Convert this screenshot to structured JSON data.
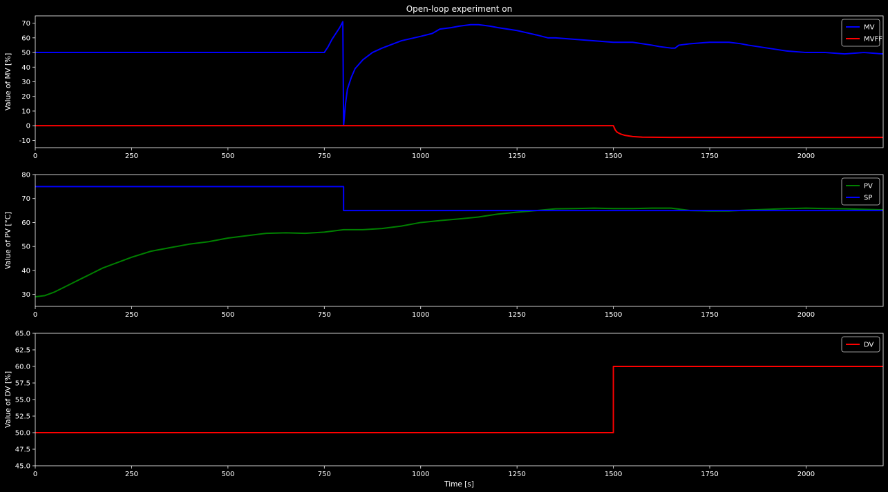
{
  "title": "Open-loop experiment on",
  "colors": {
    "background": "#000000",
    "axes": "#ffffff",
    "text": "#ffffff",
    "MV": "#0000ff",
    "MVFF": "#ff0000",
    "PV": "#008000",
    "SP": "#0000ff",
    "DV": "#ff0000"
  },
  "chart_data": [
    {
      "type": "line",
      "title": "Open-loop experiment on",
      "xlabel": "",
      "ylabel": "Value of MV [%]",
      "xlim": [
        0,
        2200
      ],
      "ylim": [
        -15,
        75
      ],
      "xticks": [
        0,
        250,
        500,
        750,
        1000,
        1250,
        1500,
        1750,
        2000
      ],
      "yticks": [
        -10,
        0,
        10,
        20,
        30,
        40,
        50,
        60,
        70
      ],
      "legend": "top-right",
      "grid": false,
      "series": [
        {
          "name": "MV",
          "color": "#0000ff",
          "x": [
            0,
            750,
            760,
            770,
            780,
            790,
            798,
            799,
            800,
            805,
            810,
            820,
            830,
            850,
            875,
            900,
            950,
            1000,
            1030,
            1050,
            1080,
            1100,
            1130,
            1150,
            1180,
            1200,
            1250,
            1300,
            1330,
            1350,
            1400,
            1450,
            1500,
            1550,
            1600,
            1620,
            1650,
            1660,
            1670,
            1700,
            1750,
            1800,
            1830,
            1850,
            1900,
            1950,
            2000,
            2050,
            2100,
            2150,
            2200
          ],
          "y": [
            50,
            50,
            54,
            59,
            63,
            67,
            71,
            40,
            0,
            15,
            25,
            33,
            39,
            45,
            50,
            53,
            58,
            61,
            63,
            66,
            67,
            68,
            69,
            69,
            68,
            67,
            65,
            62,
            60,
            60,
            59,
            58,
            57,
            57,
            55,
            54,
            53,
            53,
            55,
            56,
            57,
            57,
            56,
            55,
            53,
            51,
            50,
            50,
            49,
            50,
            49
          ]
        },
        {
          "name": "MVFF",
          "color": "#ff0000",
          "x": [
            0,
            1500,
            1505,
            1510,
            1520,
            1530,
            1550,
            1575,
            1600,
            1650,
            1700,
            2200
          ],
          "y": [
            0,
            0,
            -3,
            -4.5,
            -5.8,
            -6.6,
            -7.4,
            -7.8,
            -7.9,
            -8,
            -8,
            -8
          ]
        }
      ]
    },
    {
      "type": "line",
      "xlabel": "",
      "ylabel": "Value of PV [°C]",
      "xlim": [
        0,
        2200
      ],
      "ylim": [
        25,
        80
      ],
      "xticks": [
        0,
        250,
        500,
        750,
        1000,
        1250,
        1500,
        1750,
        2000
      ],
      "yticks": [
        30,
        40,
        50,
        60,
        70,
        80
      ],
      "legend": "top-right",
      "grid": false,
      "series": [
        {
          "name": "PV",
          "color": "#008000",
          "x": [
            0,
            25,
            50,
            75,
            100,
            125,
            150,
            175,
            200,
            250,
            300,
            350,
            400,
            450,
            500,
            550,
            600,
            650,
            700,
            750,
            800,
            850,
            900,
            950,
            1000,
            1050,
            1100,
            1150,
            1200,
            1250,
            1300,
            1350,
            1400,
            1450,
            1500,
            1550,
            1600,
            1650,
            1700,
            1750,
            1800,
            1850,
            1900,
            1950,
            2000,
            2050,
            2100,
            2150,
            2200
          ],
          "y": [
            29,
            29.5,
            31,
            33,
            35,
            37,
            39,
            41,
            42.5,
            45.5,
            48,
            49.5,
            51,
            52,
            53.5,
            54.5,
            55.5,
            55.7,
            55.5,
            56,
            57,
            57,
            57.5,
            58.5,
            60,
            60.8,
            61.5,
            62.3,
            63.5,
            64.3,
            65,
            65.7,
            65.8,
            66,
            65.8,
            65.8,
            66,
            66,
            65,
            64.8,
            64.8,
            65.2,
            65.5,
            65.8,
            66,
            65.8,
            65.7,
            65.5,
            65.3
          ]
        },
        {
          "name": "SP",
          "color": "#0000ff",
          "x": [
            0,
            800,
            800,
            2200
          ],
          "y": [
            75,
            75,
            65,
            65
          ]
        }
      ]
    },
    {
      "type": "line",
      "xlabel": "Time [s]",
      "ylabel": "Value of DV [%]",
      "xlim": [
        0,
        2200
      ],
      "ylim": [
        45,
        65
      ],
      "xticks": [
        0,
        250,
        500,
        750,
        1000,
        1250,
        1500,
        1750,
        2000
      ],
      "yticks": [
        45.0,
        47.5,
        50.0,
        52.5,
        55.0,
        57.5,
        60.0,
        62.5,
        65.0
      ],
      "ytick_labels": [
        "45.0",
        "47.5",
        "50.0",
        "52.5",
        "55.0",
        "57.5",
        "60.0",
        "62.5",
        "65.0"
      ],
      "legend": "top-right",
      "grid": false,
      "series": [
        {
          "name": "DV",
          "color": "#ff0000",
          "x": [
            0,
            1500,
            1500,
            2200
          ],
          "y": [
            50,
            50,
            60,
            60
          ]
        }
      ]
    }
  ]
}
